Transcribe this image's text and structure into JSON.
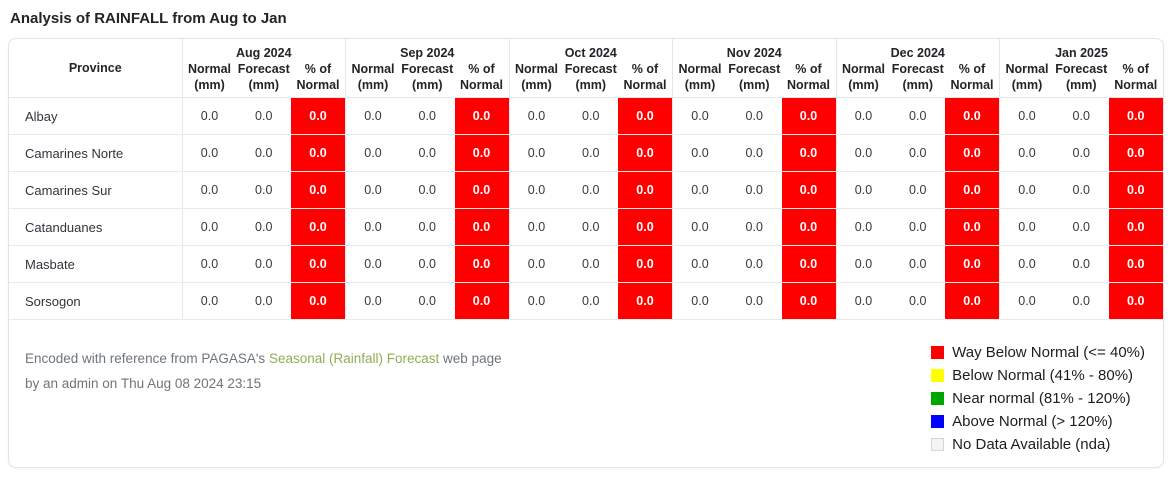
{
  "title": "Analysis of RAINFALL from Aug to Jan",
  "colors": {
    "way_below_normal": "#ff0000",
    "below_normal": "#ffff00",
    "near_normal": "#00a600",
    "above_normal": "#0000fe",
    "no_data": "#f4f4f4",
    "link_green": "#8fae53"
  },
  "table": {
    "province_header": "Province",
    "months": [
      "Aug 2024",
      "Sep 2024",
      "Oct 2024",
      "Nov 2024",
      "Dec 2024",
      "Jan 2025"
    ],
    "sub_headers": [
      [
        "Normal",
        "(mm)"
      ],
      [
        "Forecast",
        "(mm)"
      ],
      [
        "% of",
        "Normal"
      ]
    ],
    "rows": [
      {
        "province": "Albay",
        "months": [
          {
            "normal": "0.0",
            "forecast": "0.0",
            "percent_of_normal": "0.0"
          },
          {
            "normal": "0.0",
            "forecast": "0.0",
            "percent_of_normal": "0.0"
          },
          {
            "normal": "0.0",
            "forecast": "0.0",
            "percent_of_normal": "0.0"
          },
          {
            "normal": "0.0",
            "forecast": "0.0",
            "percent_of_normal": "0.0"
          },
          {
            "normal": "0.0",
            "forecast": "0.0",
            "percent_of_normal": "0.0"
          },
          {
            "normal": "0.0",
            "forecast": "0.0",
            "percent_of_normal": "0.0"
          }
        ]
      },
      {
        "province": "Camarines Norte",
        "months": [
          {
            "normal": "0.0",
            "forecast": "0.0",
            "percent_of_normal": "0.0"
          },
          {
            "normal": "0.0",
            "forecast": "0.0",
            "percent_of_normal": "0.0"
          },
          {
            "normal": "0.0",
            "forecast": "0.0",
            "percent_of_normal": "0.0"
          },
          {
            "normal": "0.0",
            "forecast": "0.0",
            "percent_of_normal": "0.0"
          },
          {
            "normal": "0.0",
            "forecast": "0.0",
            "percent_of_normal": "0.0"
          },
          {
            "normal": "0.0",
            "forecast": "0.0",
            "percent_of_normal": "0.0"
          }
        ]
      },
      {
        "province": "Camarines Sur",
        "months": [
          {
            "normal": "0.0",
            "forecast": "0.0",
            "percent_of_normal": "0.0"
          },
          {
            "normal": "0.0",
            "forecast": "0.0",
            "percent_of_normal": "0.0"
          },
          {
            "normal": "0.0",
            "forecast": "0.0",
            "percent_of_normal": "0.0"
          },
          {
            "normal": "0.0",
            "forecast": "0.0",
            "percent_of_normal": "0.0"
          },
          {
            "normal": "0.0",
            "forecast": "0.0",
            "percent_of_normal": "0.0"
          },
          {
            "normal": "0.0",
            "forecast": "0.0",
            "percent_of_normal": "0.0"
          }
        ]
      },
      {
        "province": "Catanduanes",
        "months": [
          {
            "normal": "0.0",
            "forecast": "0.0",
            "percent_of_normal": "0.0"
          },
          {
            "normal": "0.0",
            "forecast": "0.0",
            "percent_of_normal": "0.0"
          },
          {
            "normal": "0.0",
            "forecast": "0.0",
            "percent_of_normal": "0.0"
          },
          {
            "normal": "0.0",
            "forecast": "0.0",
            "percent_of_normal": "0.0"
          },
          {
            "normal": "0.0",
            "forecast": "0.0",
            "percent_of_normal": "0.0"
          },
          {
            "normal": "0.0",
            "forecast": "0.0",
            "percent_of_normal": "0.0"
          }
        ]
      },
      {
        "province": "Masbate",
        "months": [
          {
            "normal": "0.0",
            "forecast": "0.0",
            "percent_of_normal": "0.0"
          },
          {
            "normal": "0.0",
            "forecast": "0.0",
            "percent_of_normal": "0.0"
          },
          {
            "normal": "0.0",
            "forecast": "0.0",
            "percent_of_normal": "0.0"
          },
          {
            "normal": "0.0",
            "forecast": "0.0",
            "percent_of_normal": "0.0"
          },
          {
            "normal": "0.0",
            "forecast": "0.0",
            "percent_of_normal": "0.0"
          },
          {
            "normal": "0.0",
            "forecast": "0.0",
            "percent_of_normal": "0.0"
          }
        ]
      },
      {
        "province": "Sorsogon",
        "months": [
          {
            "normal": "0.0",
            "forecast": "0.0",
            "percent_of_normal": "0.0"
          },
          {
            "normal": "0.0",
            "forecast": "0.0",
            "percent_of_normal": "0.0"
          },
          {
            "normal": "0.0",
            "forecast": "0.0",
            "percent_of_normal": "0.0"
          },
          {
            "normal": "0.0",
            "forecast": "0.0",
            "percent_of_normal": "0.0"
          },
          {
            "normal": "0.0",
            "forecast": "0.0",
            "percent_of_normal": "0.0"
          },
          {
            "normal": "0.0",
            "forecast": "0.0",
            "percent_of_normal": "0.0"
          }
        ]
      }
    ]
  },
  "footer": {
    "prefix": "Encoded with reference from PAGASA's",
    "link_text": "Seasonal (Rainfall) Forecast",
    "suffix": "web page",
    "line2": "by an admin on  Thu Aug 08 2024 23:15"
  },
  "legend": {
    "items": [
      {
        "label": "Way Below Normal (<= 40%)",
        "color": "#ff0000"
      },
      {
        "label": "Below Normal (41% - 80%)",
        "color": "#ffff00"
      },
      {
        "label": "Near normal (81% - 120%)",
        "color": "#00a600"
      },
      {
        "label": "Above Normal (> 120%)",
        "color": "#0000fe"
      },
      {
        "label": "No Data Available (nda)",
        "color": "#f4f4f4",
        "border": "#d6d6d6"
      }
    ]
  }
}
